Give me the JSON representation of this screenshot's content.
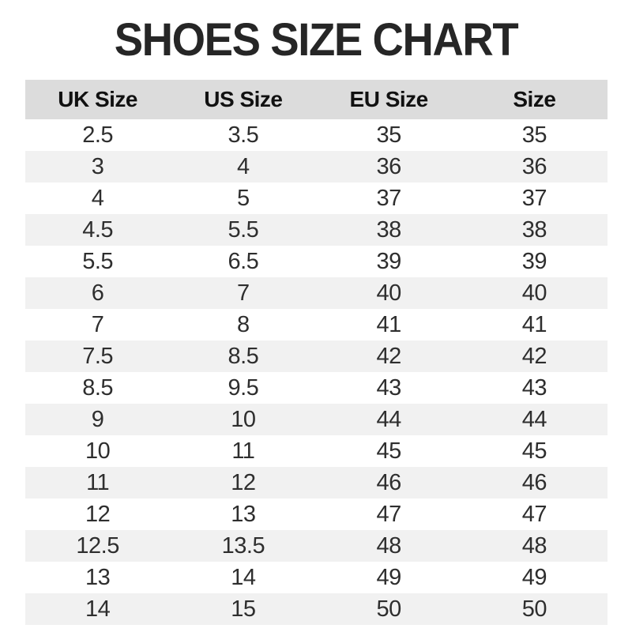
{
  "title": "SHOES SIZE CHART",
  "colors": {
    "page_bg": "#ffffff",
    "title_text": "#262626",
    "header_bg": "#dcdcdc",
    "header_text": "#111111",
    "stripe_bg": "#f1f1f1",
    "body_text": "#2e2e2e"
  },
  "chart_data": {
    "type": "table",
    "title": "SHOES SIZE CHART",
    "columns": [
      "UK Size",
      "US Size",
      "EU Size",
      "Size"
    ],
    "rows": [
      [
        "2.5",
        "3.5",
        "35",
        "35"
      ],
      [
        "3",
        "4",
        "36",
        "36"
      ],
      [
        "4",
        "5",
        "37",
        "37"
      ],
      [
        "4.5",
        "5.5",
        "38",
        "38"
      ],
      [
        "5.5",
        "6.5",
        "39",
        "39"
      ],
      [
        "6",
        "7",
        "40",
        "40"
      ],
      [
        "7",
        "8",
        "41",
        "41"
      ],
      [
        "7.5",
        "8.5",
        "42",
        "42"
      ],
      [
        "8.5",
        "9.5",
        "43",
        "43"
      ],
      [
        "9",
        "10",
        "44",
        "44"
      ],
      [
        "10",
        "11",
        "45",
        "45"
      ],
      [
        "11",
        "12",
        "46",
        "46"
      ],
      [
        "12",
        "13",
        "47",
        "47"
      ],
      [
        "12.5",
        "13.5",
        "48",
        "48"
      ],
      [
        "13",
        "14",
        "49",
        "49"
      ],
      [
        "14",
        "15",
        "50",
        "50"
      ]
    ],
    "layout": {
      "striping": "alternating rows, even rows shaded",
      "grid": false,
      "alignment": "center"
    }
  }
}
